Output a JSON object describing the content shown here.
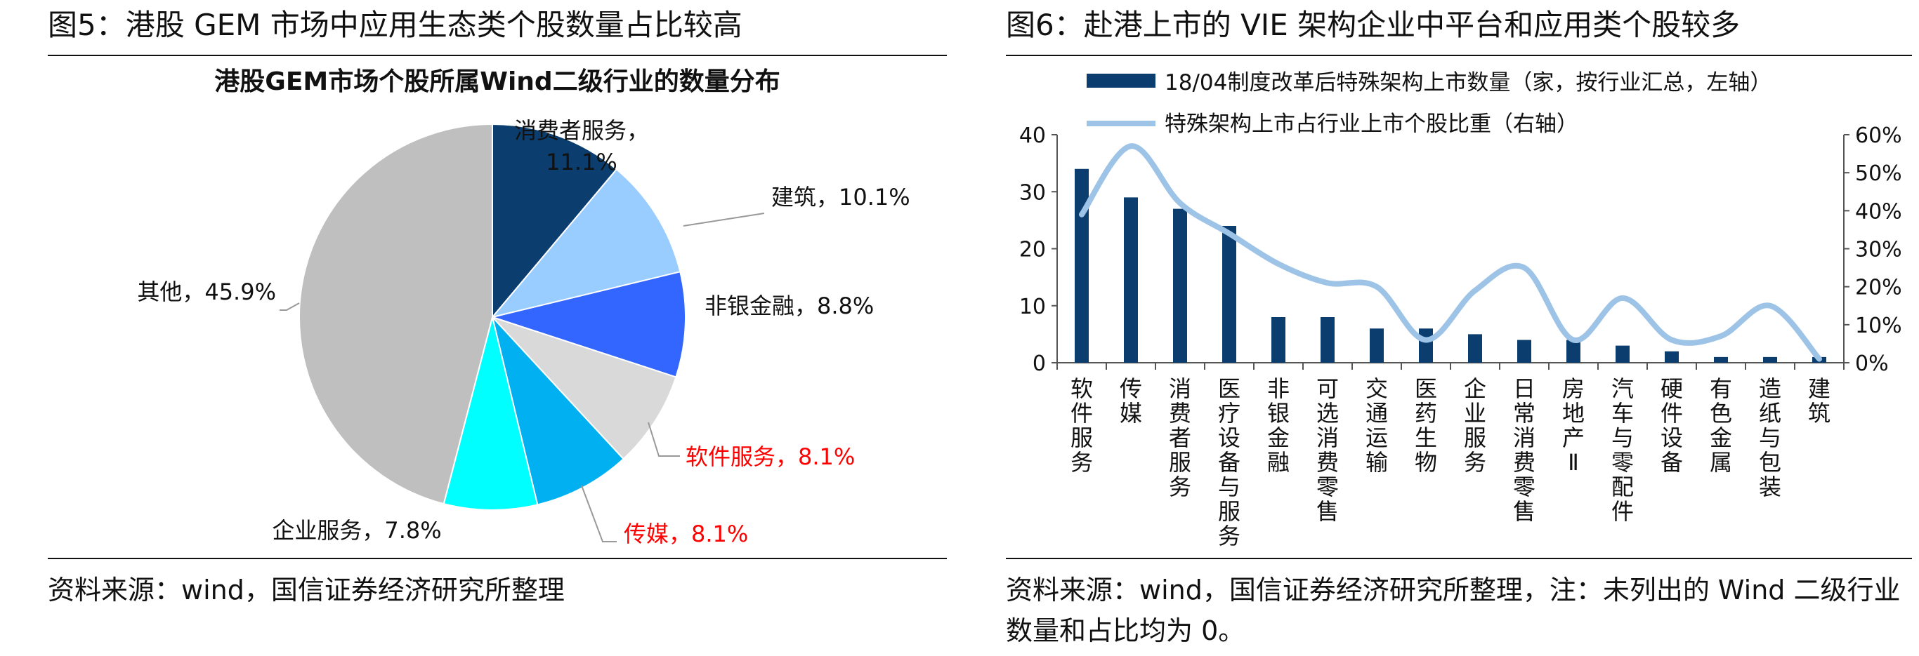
{
  "left": {
    "figure_title": "图5：港股 GEM 市场中应用生态类个股数量占比较高",
    "source": "资料来源：wind，国信证券经济研究所整理"
  },
  "right": {
    "figure_title": "图6：赴港上市的 VIE 架构企业中平台和应用类个股较多",
    "source": "资料来源：wind，国信证券经济研究所整理，注：未列出的 Wind 二级行业数量和占比均为 0。"
  },
  "chart_data": [
    {
      "type": "pie",
      "title": "港股GEM市场个股所属Wind二级行业的数量分布",
      "slices": [
        {
          "label": "消费者服务，11.1%",
          "value": 11.1,
          "color": "#0b3d6e"
        },
        {
          "label": "建筑，10.1%",
          "value": 10.1,
          "color": "#99ccff"
        },
        {
          "label": "非银金融，8.8%",
          "value": 8.8,
          "color": "#3366ff"
        },
        {
          "label": "软件服务，8.1%",
          "value": 8.1,
          "color": "#d9d9d9",
          "label_color": "#ff0000"
        },
        {
          "label": "传媒，8.1%",
          "value": 8.1,
          "color": "#00b0f0",
          "label_color": "#ff0000"
        },
        {
          "label": "企业服务，7.8%",
          "value": 7.8,
          "color": "#00ffff"
        },
        {
          "label": "其他，45.9%",
          "value": 45.9,
          "color": "#bfbfbf"
        }
      ]
    },
    {
      "type": "bar",
      "categories": [
        "软件服务",
        "传媒",
        "消费者服务",
        "医疗设备与服务",
        "非银金融",
        "可选消费零售",
        "交通运输",
        "医药生物",
        "企业服务",
        "日常消费零售",
        "房地产Ⅱ",
        "汽车与零配件",
        "硬件设备",
        "有色金属",
        "造纸与包装",
        "建筑"
      ],
      "series": [
        {
          "name": "18/04制度改革后特殊架构上市数量（家，按行业汇总，左轴）",
          "type": "bar",
          "axis": "left",
          "color": "#0b3d6e",
          "values": [
            34,
            29,
            27,
            24,
            8,
            8,
            6,
            6,
            5,
            4,
            4,
            3,
            2,
            1,
            1,
            1
          ]
        },
        {
          "name": "特殊架构上市占行业上市个股比重（右轴）",
          "type": "line",
          "axis": "right",
          "color": "#9dc3e6",
          "values": [
            0.39,
            0.57,
            0.42,
            0.34,
            0.26,
            0.21,
            0.2,
            0.06,
            0.19,
            0.25,
            0.06,
            0.17,
            0.06,
            0.07,
            0.15,
            0.01
          ]
        }
      ],
      "y_left": {
        "min": 0,
        "max": 40,
        "ticks": [
          "0",
          "10",
          "20",
          "30",
          "40"
        ]
      },
      "y_right": {
        "min": 0,
        "max": 0.6,
        "ticks": [
          "0%",
          "10%",
          "20%",
          "30%",
          "40%",
          "50%",
          "60%"
        ]
      },
      "legend_placement": "top-left"
    }
  ]
}
